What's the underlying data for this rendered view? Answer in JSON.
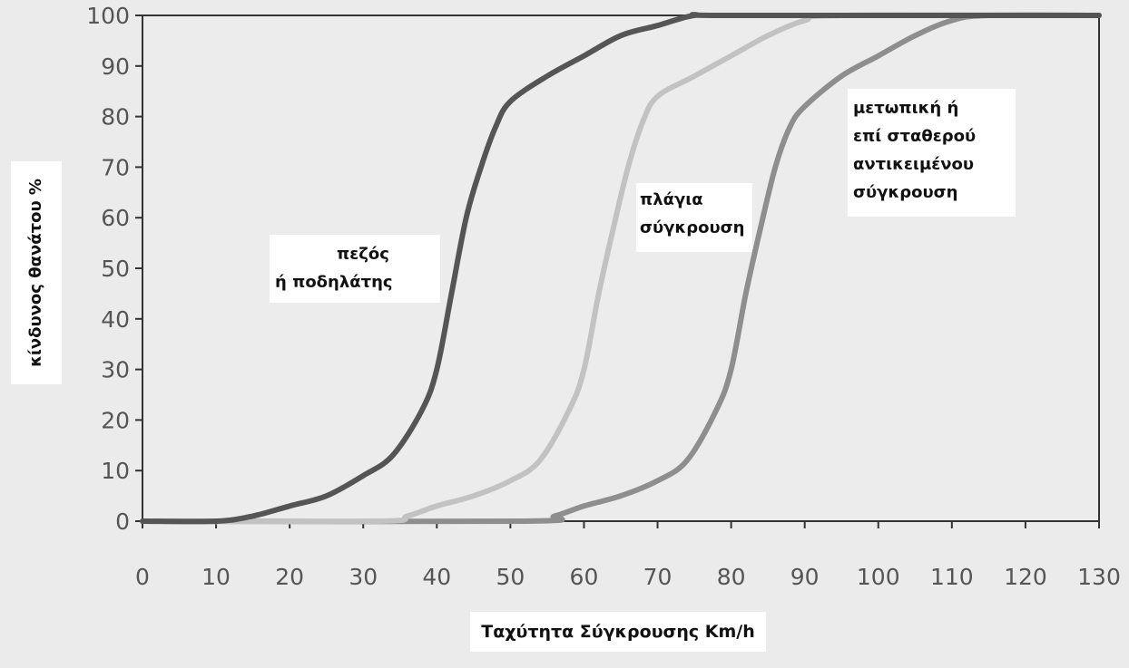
{
  "chart_data": {
    "type": "line",
    "title": "",
    "xlabel": "Ταχύτητα Σύγκρουσης Km/h",
    "ylabel": "κίνδυνος θανάτου %",
    "xlim": [
      0,
      130
    ],
    "ylim": [
      0,
      100
    ],
    "xticks": [
      0,
      10,
      20,
      30,
      40,
      50,
      60,
      70,
      80,
      90,
      100,
      110,
      120,
      130
    ],
    "yticks": [
      0,
      10,
      20,
      30,
      40,
      50,
      60,
      70,
      80,
      90,
      100
    ],
    "grid": false,
    "series": [
      {
        "name": "πεζός ή ποδηλάτης",
        "label_lines": [
          "πεζός",
          "ή ποδηλάτης"
        ],
        "color": "#555555",
        "points": [
          [
            0,
            0
          ],
          [
            10,
            0
          ],
          [
            15,
            1
          ],
          [
            20,
            3
          ],
          [
            25,
            5
          ],
          [
            30,
            9
          ],
          [
            34,
            13
          ],
          [
            38,
            22
          ],
          [
            40,
            30
          ],
          [
            42,
            45
          ],
          [
            44,
            60
          ],
          [
            46,
            70
          ],
          [
            48,
            78
          ],
          [
            50,
            83
          ],
          [
            55,
            88
          ],
          [
            60,
            92
          ],
          [
            65,
            96
          ],
          [
            70,
            98
          ],
          [
            75,
            100
          ],
          [
            80,
            100
          ],
          [
            130,
            100
          ]
        ]
      },
      {
        "name": "πλάγια σύγκρουση",
        "label_lines": [
          "πλάγια",
          "σύγκρουση"
        ],
        "color": "#c2c2c2",
        "points": [
          [
            0,
            0
          ],
          [
            32,
            0
          ],
          [
            36,
            1
          ],
          [
            40,
            3
          ],
          [
            45,
            5
          ],
          [
            50,
            8
          ],
          [
            54,
            12
          ],
          [
            58,
            22
          ],
          [
            60,
            30
          ],
          [
            62,
            45
          ],
          [
            64,
            58
          ],
          [
            66,
            70
          ],
          [
            68,
            79
          ],
          [
            70,
            84
          ],
          [
            75,
            88
          ],
          [
            80,
            92
          ],
          [
            85,
            96
          ],
          [
            90,
            99
          ],
          [
            95,
            100
          ],
          [
            130,
            100
          ]
        ]
      },
      {
        "name": "μετωπική ή επί σταθερού αντικειμένου σύγκρουση",
        "label_lines": [
          "μετωπική ή",
          "επί σταθερού",
          "αντικειμένου",
          "σύγκρουση"
        ],
        "color": "#8e8e8e",
        "points": [
          [
            0,
            0
          ],
          [
            52,
            0
          ],
          [
            56,
            1
          ],
          [
            60,
            3
          ],
          [
            65,
            5
          ],
          [
            70,
            8
          ],
          [
            74,
            12
          ],
          [
            78,
            22
          ],
          [
            80,
            30
          ],
          [
            82,
            45
          ],
          [
            84,
            58
          ],
          [
            86,
            70
          ],
          [
            88,
            78
          ],
          [
            90,
            82
          ],
          [
            95,
            88
          ],
          [
            100,
            92
          ],
          [
            105,
            96
          ],
          [
            110,
            99
          ],
          [
            115,
            100
          ],
          [
            130,
            100
          ]
        ]
      }
    ]
  }
}
